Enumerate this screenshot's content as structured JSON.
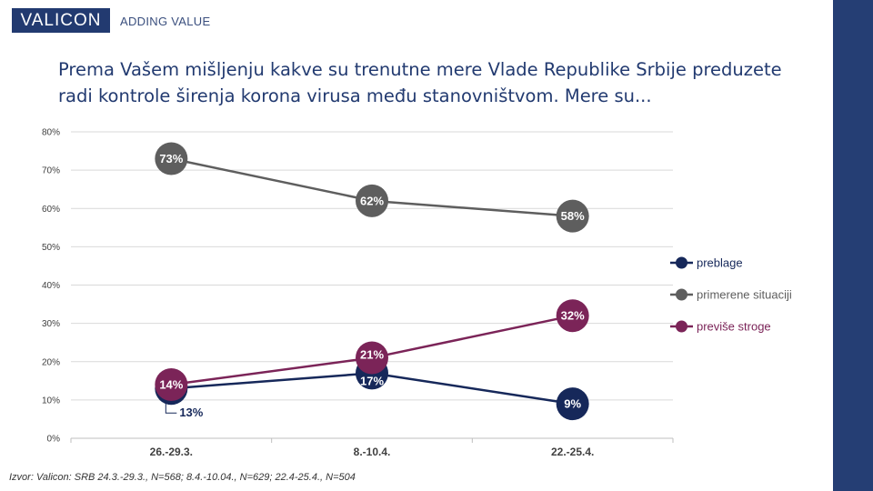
{
  "brand": {
    "logo_text": "VALICON",
    "tagline": "ADDING VALUE"
  },
  "title": {
    "line1": "Prema Vašem mišljenju kakve su trenutne mere Vlade Republike Srbije preduzete",
    "line2": "radi kontrole širenja korona virusa među stanovništvom. Mere su..."
  },
  "source": "Izvor: Valicon: SRB 24.3.-29.3., N=568; 8.4.-10.04., N=629; 22.4-25.4., N=504",
  "colors": {
    "preblage": "#16285a",
    "primerene_situaciji": "#5e5e5e",
    "previse_stroge": "#7b2458",
    "side_bar": "#253e74"
  },
  "chart_data": {
    "type": "line",
    "categories": [
      "26.-29.3.",
      "8.-10.4.",
      "22.-25.4."
    ],
    "ylim": [
      0,
      80
    ],
    "yticks": [
      "0%",
      "10%",
      "20%",
      "30%",
      "40%",
      "50%",
      "60%",
      "70%",
      "80%"
    ],
    "grid": true,
    "legend_position": "right",
    "series": [
      {
        "name": "preblage",
        "values": [
          13,
          17,
          9
        ],
        "labels": [
          "13%",
          "17%",
          "9%"
        ]
      },
      {
        "name": "primerene situaciji",
        "values": [
          73,
          62,
          58
        ],
        "labels": [
          "73%",
          "62%",
          "58%"
        ]
      },
      {
        "name": "previše stroge",
        "values": [
          14,
          21,
          32
        ],
        "labels": [
          "14%",
          "21%",
          "32%"
        ]
      }
    ]
  }
}
